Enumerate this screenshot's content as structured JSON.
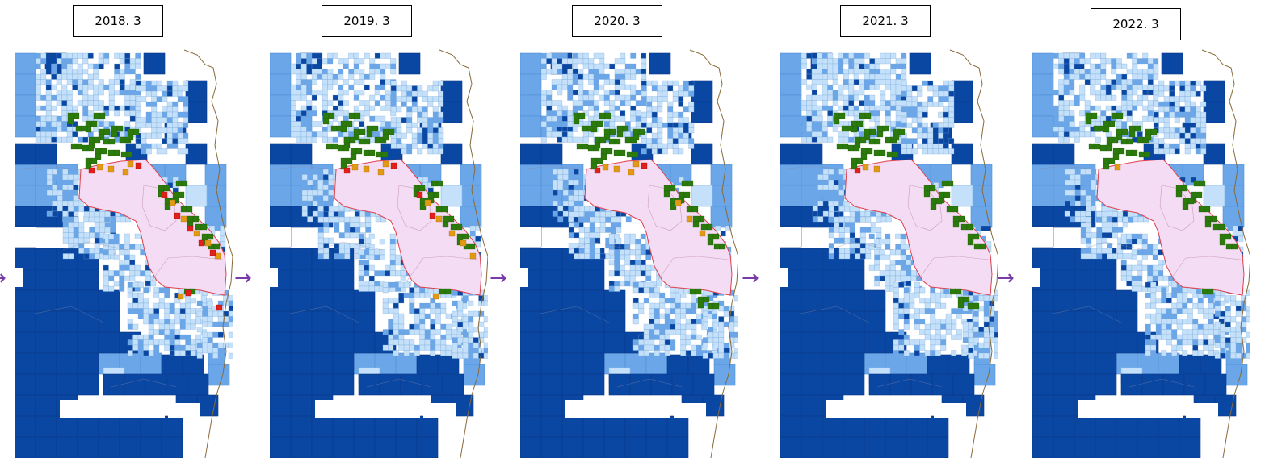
{
  "panels": [
    {
      "label": "2018. 3",
      "red": 9,
      "orange": 10,
      "green": 26
    },
    {
      "label": "2019. 3",
      "red": 4,
      "orange": 10,
      "green": 26
    },
    {
      "label": "2020. 3",
      "red": 2,
      "orange": 7,
      "green": 28
    },
    {
      "label": "2021. 3",
      "red": 1,
      "orange": 2,
      "green": 28
    },
    {
      "label": "2022. 3",
      "red": 0,
      "orange": 1,
      "green": 26
    }
  ],
  "arrow_glyph": "→",
  "colors": {
    "dark_blue": "#0a47a3",
    "mid_blue": "#6aa6e8",
    "light_blue": "#c4e0fa",
    "green": "#2d7a0c",
    "orange": "#e29a14",
    "red": "#e0201a",
    "zone_fill": "#f4dcf4",
    "zone_border": "#e0404a",
    "coast": "#8a6a3a",
    "arrow": "#7a3aa8"
  }
}
